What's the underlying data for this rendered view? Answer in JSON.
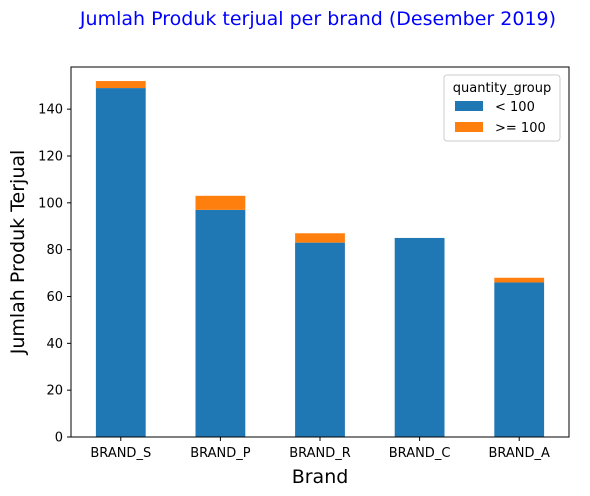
{
  "chart_data": {
    "type": "bar",
    "stacked": true,
    "title": "Jumlah Produk terjual per brand (Desember 2019)",
    "xlabel": "Brand",
    "ylabel": "Jumlah Produk Terjual",
    "categories": [
      "BRAND_S",
      "BRAND_P",
      "BRAND_R",
      "BRAND_C",
      "BRAND_A"
    ],
    "series": [
      {
        "name": "< 100",
        "color": "#1f77b4",
        "values": [
          149,
          97,
          83,
          85,
          66
        ]
      },
      {
        "name": ">= 100",
        "color": "#ff7f0e",
        "values": [
          3,
          6,
          4,
          0,
          2
        ]
      }
    ],
    "ylim": [
      0,
      158
    ],
    "yticks": [
      0,
      20,
      40,
      60,
      80,
      100,
      120,
      140
    ],
    "grid": false,
    "legend": {
      "title": "quantity_group",
      "placement": "top-right"
    }
  }
}
